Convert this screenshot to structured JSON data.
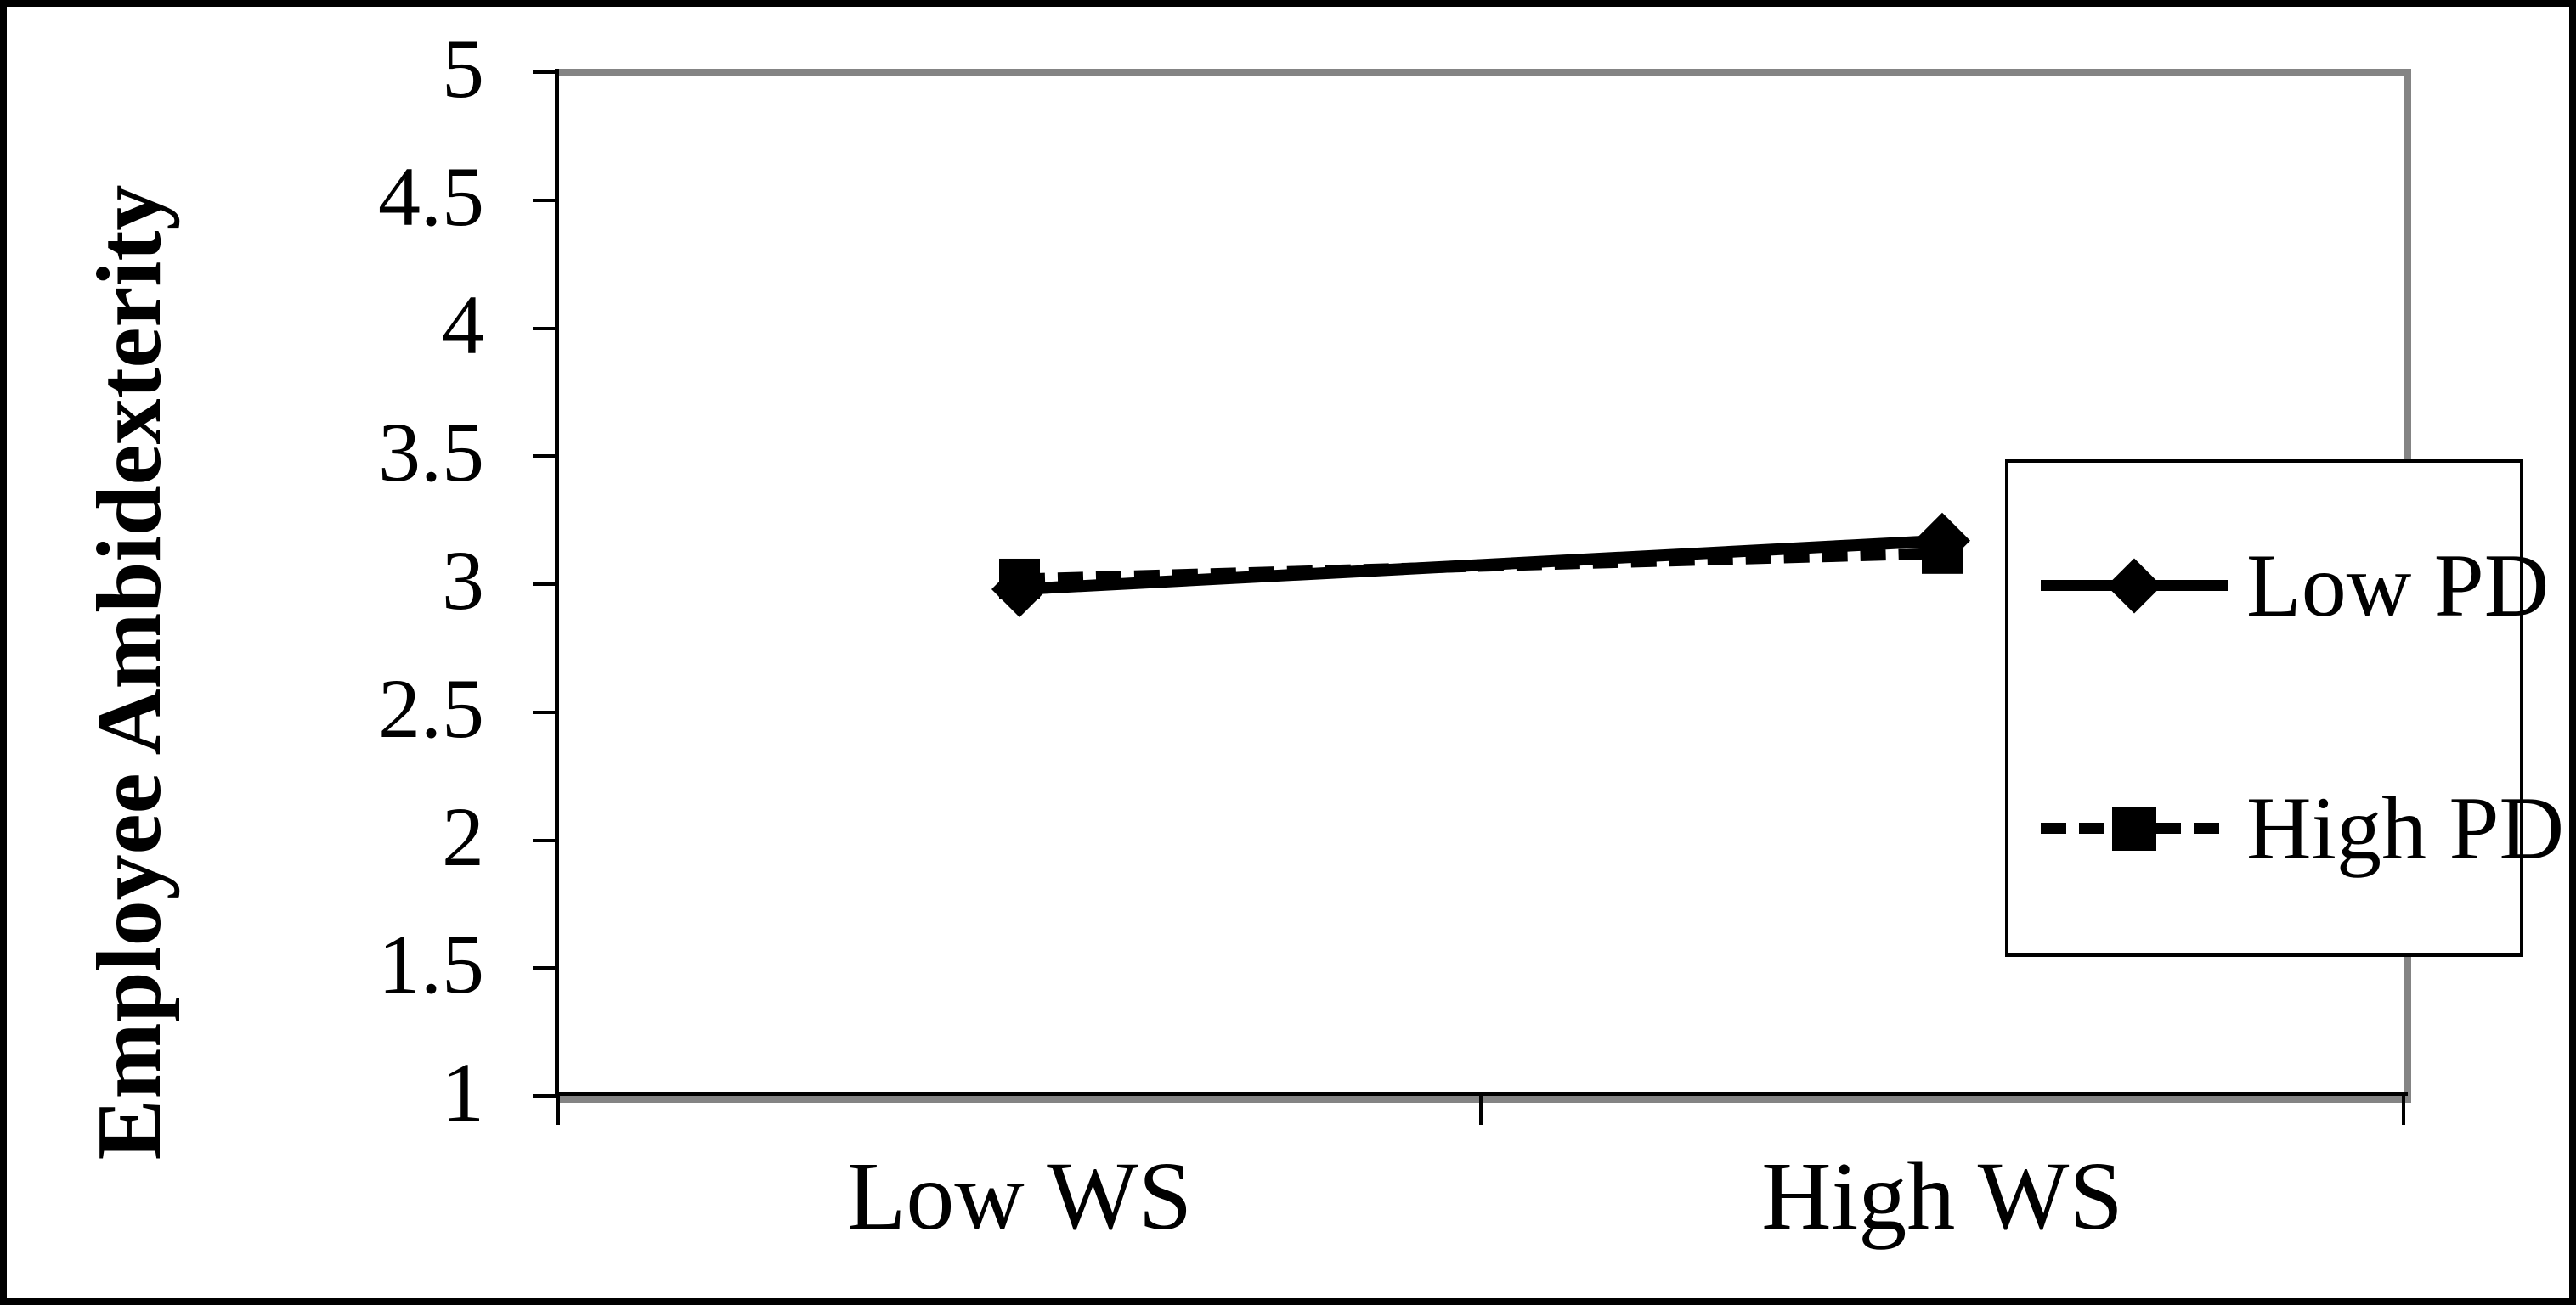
{
  "figure": {
    "background": "#ffffff",
    "outer_border_color": "#000000",
    "plot_border_color": "#848484",
    "axis_color": "#000000"
  },
  "chart_data": {
    "type": "line",
    "title": "",
    "xlabel": "",
    "ylabel": "Employee Ambidexterity",
    "categories": [
      "Low WS",
      "High WS"
    ],
    "series": [
      {
        "name": "Low PD",
        "values": [
          2.98,
          3.17
        ],
        "line_style": "solid",
        "marker": "diamond",
        "color": "#000000"
      },
      {
        "name": "High PD",
        "values": [
          3.02,
          3.12
        ],
        "line_style": "dashed",
        "marker": "square",
        "color": "#000000"
      }
    ],
    "ylim": [
      1,
      5
    ],
    "ytick_values": [
      5,
      4.5,
      4,
      3.5,
      3,
      2.5,
      2,
      1.5,
      1
    ],
    "ytick_labels": [
      "5",
      "4.5",
      "4",
      "3.5",
      "3",
      "2.5",
      "2",
      "1.5",
      "1"
    ],
    "grid": false,
    "legend_position": "right-inside"
  }
}
